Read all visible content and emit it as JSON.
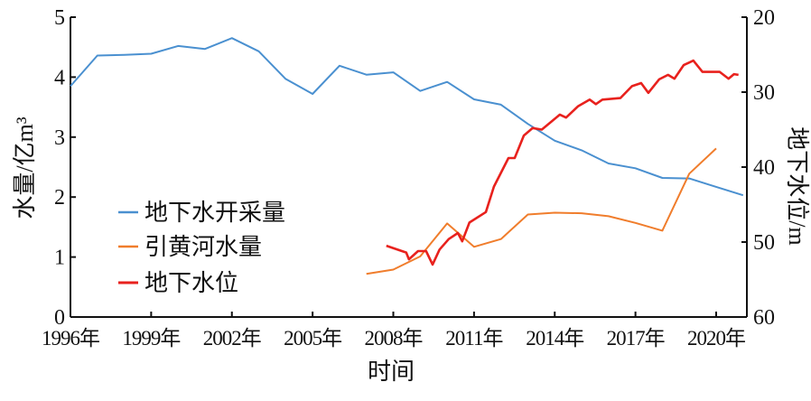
{
  "chart_data": {
    "type": "line",
    "xlabel": "时间",
    "ylabel_left": "水量/亿m³",
    "ylabel_right": "地下水位/m",
    "x_ticks": [
      {
        "year": 1996,
        "label": "1996年"
      },
      {
        "year": 1999,
        "label": "1999年"
      },
      {
        "year": 2002,
        "label": "2002年"
      },
      {
        "year": 2005,
        "label": "2005年"
      },
      {
        "year": 2008,
        "label": "2008年"
      },
      {
        "year": 2011,
        "label": "2011年"
      },
      {
        "year": 2014,
        "label": "2014年"
      },
      {
        "year": 2017,
        "label": "2017年"
      },
      {
        "year": 2020,
        "label": "2020年"
      }
    ],
    "xlim": [
      1996,
      2022.2
    ],
    "ylim_left": [
      0,
      5
    ],
    "yticks_left": [
      "0",
      "1",
      "2",
      "3",
      "4",
      "5"
    ],
    "ylim_right": [
      20,
      60
    ],
    "right_axis_inverted": true,
    "yticks_right": [
      "20",
      "30",
      "40",
      "50",
      "60"
    ],
    "grid": false,
    "legend_position": "center-left",
    "series": [
      {
        "name": "地下水开采量",
        "axis": "left",
        "color": "#4a90d0",
        "x": [
          1996,
          1997,
          1998,
          1999,
          2000,
          2001,
          2002,
          2003,
          2004,
          2005,
          2006,
          2007,
          2008,
          2009,
          2010,
          2011,
          2012,
          2013,
          2014,
          2015,
          2016,
          2017,
          2018,
          2019,
          2020,
          2021
        ],
        "y": [
          3.85,
          4.36,
          4.37,
          4.39,
          4.52,
          4.47,
          4.65,
          4.43,
          3.97,
          3.72,
          4.19,
          4.04,
          4.08,
          3.77,
          3.92,
          3.63,
          3.54,
          3.22,
          2.94,
          2.78,
          2.56,
          2.48,
          2.32,
          2.31,
          2.17,
          2.03
        ]
      },
      {
        "name": "引黄河水量",
        "axis": "left",
        "color": "#f07d2c",
        "x": [
          2007,
          2008,
          2009,
          2010,
          2011,
          2012,
          2013,
          2014,
          2015,
          2016,
          2017,
          2018,
          2019,
          2020
        ],
        "y": [
          0.72,
          0.79,
          1.01,
          1.56,
          1.17,
          1.3,
          1.71,
          1.74,
          1.73,
          1.68,
          1.57,
          1.44,
          2.39,
          2.81
        ]
      },
      {
        "name": "地下水位",
        "axis": "right",
        "color": "#e8211d",
        "x": [
          2007.74,
          2008.48,
          2008.58,
          2008.92,
          2009.22,
          2009.46,
          2009.72,
          2010.06,
          2010.4,
          2010.56,
          2010.83,
          2011.44,
          2011.74,
          2012.28,
          2012.51,
          2012.85,
          2013.18,
          2013.52,
          2014.19,
          2014.42,
          2014.86,
          2015.3,
          2015.53,
          2015.77,
          2016.44,
          2016.87,
          2017.21,
          2017.48,
          2017.88,
          2018.21,
          2018.45,
          2018.79,
          2019.15,
          2019.49,
          2020.13,
          2020.46,
          2020.66,
          2020.83
        ],
        "y": [
          50.5,
          51.4,
          52.3,
          51.2,
          51.2,
          53.0,
          51.0,
          49.6,
          48.8,
          49.9,
          47.4,
          46.0,
          42.6,
          38.8,
          38.8,
          35.8,
          34.8,
          35.0,
          33.0,
          33.4,
          31.9,
          31.0,
          31.6,
          31.0,
          30.8,
          29.2,
          28.8,
          30.1,
          28.3,
          27.7,
          28.2,
          26.4,
          25.8,
          27.3,
          27.3,
          28.2,
          27.6,
          27.7
        ]
      }
    ]
  }
}
